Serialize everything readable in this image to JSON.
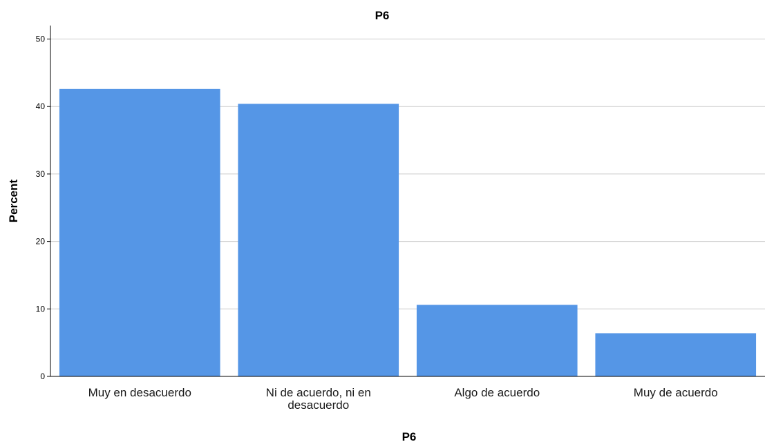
{
  "chart_data": {
    "type": "bar",
    "title": "P6",
    "xlabel": "P6",
    "ylabel": "Percent",
    "categories": [
      "Muy en desacuerdo",
      "Ni de acuerdo, ni en desacuerdo",
      "Algo de acuerdo",
      "Muy de acuerdo"
    ],
    "category_lines": [
      [
        "Muy en desacuerdo"
      ],
      [
        "Ni de acuerdo, ni en",
        "desacuerdo"
      ],
      [
        "Algo de acuerdo"
      ],
      [
        "Muy de acuerdo"
      ]
    ],
    "values": [
      42.6,
      40.4,
      10.6,
      6.4
    ],
    "ylim": [
      0,
      52
    ],
    "yticks": [
      0,
      10,
      20,
      30,
      40,
      50
    ],
    "grid": true,
    "legend": "none",
    "colors": {
      "bar": "#5596E6",
      "grid": "#CCCCCC",
      "axis": "#000000"
    }
  }
}
